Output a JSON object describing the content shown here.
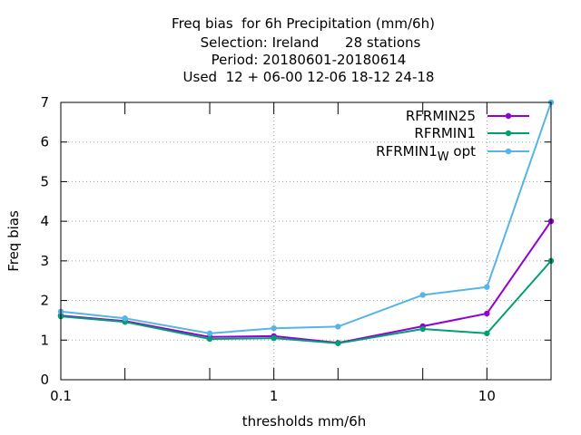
{
  "chart_data": {
    "type": "line",
    "title_lines": [
      "Freq bias  for 6h Precipitation (mm/6h)",
      "Selection: Ireland      28 stations",
      "Period: 20180601-20180614",
      "Used  12 + 06-00 12-06 18-12 24-18"
    ],
    "xlabel": "thresholds mm/6h",
    "ylabel": "Freq bias",
    "x_scale": "log",
    "xlim": [
      0.1,
      20
    ],
    "ylim": [
      0,
      7
    ],
    "x_ticks": [
      {
        "value": 0.1,
        "label": "0.1"
      },
      {
        "value": 1,
        "label": "1"
      },
      {
        "value": 10,
        "label": "10"
      }
    ],
    "x_minor_ticks": [
      0.2,
      0.5,
      2,
      5,
      20
    ],
    "y_ticks": [
      {
        "value": 0,
        "label": "0"
      },
      {
        "value": 1,
        "label": "1"
      },
      {
        "value": 2,
        "label": "2"
      },
      {
        "value": 3,
        "label": "3"
      },
      {
        "value": 4,
        "label": "4"
      },
      {
        "value": 5,
        "label": "5"
      },
      {
        "value": 6,
        "label": "6"
      },
      {
        "value": 7,
        "label": "7"
      }
    ],
    "grid": true,
    "legend_position": "top-right",
    "x": [
      0.1,
      0.2,
      0.5,
      1,
      2,
      5,
      10,
      20
    ],
    "series": [
      {
        "name": "RFRMIN25",
        "color": "#9400d3",
        "values": [
          1.62,
          1.48,
          1.08,
          1.1,
          0.93,
          1.35,
          1.67,
          4.0
        ]
      },
      {
        "name": "RFRMIN1",
        "color": "#009e73",
        "values": [
          1.6,
          1.46,
          1.03,
          1.05,
          0.92,
          1.28,
          1.17,
          3.0
        ]
      },
      {
        "name": "RFRMIN1",
        "name_subscript": "W",
        "name_suffix": "opt",
        "color": "#56b4e9",
        "values": [
          1.72,
          1.55,
          1.17,
          1.3,
          1.34,
          2.14,
          2.34,
          7.0
        ]
      }
    ]
  }
}
